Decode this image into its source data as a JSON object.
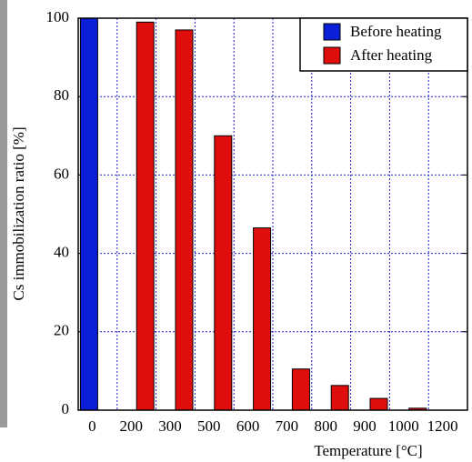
{
  "chart_data": {
    "type": "bar",
    "x_label": "Temperature [°C]",
    "y_label": "Cs immobilization ratio [%]",
    "categories": [
      "0",
      "200",
      "300",
      "500",
      "600",
      "700",
      "800",
      "900",
      "1000",
      "1200"
    ],
    "series": [
      {
        "name": "Before heating",
        "color": "#0a1fd6",
        "values": [
          100,
          null,
          null,
          null,
          null,
          null,
          null,
          null,
          null,
          null
        ]
      },
      {
        "name": "After heating",
        "color": "#e00d0d",
        "values": [
          null,
          99,
          97,
          70,
          46.5,
          10.5,
          6.3,
          3,
          0.5,
          0
        ]
      }
    ],
    "ylim": [
      0,
      100
    ],
    "yticks": [
      0,
      20,
      40,
      60,
      80,
      100
    ],
    "grid": true,
    "legend": "top-right"
  }
}
